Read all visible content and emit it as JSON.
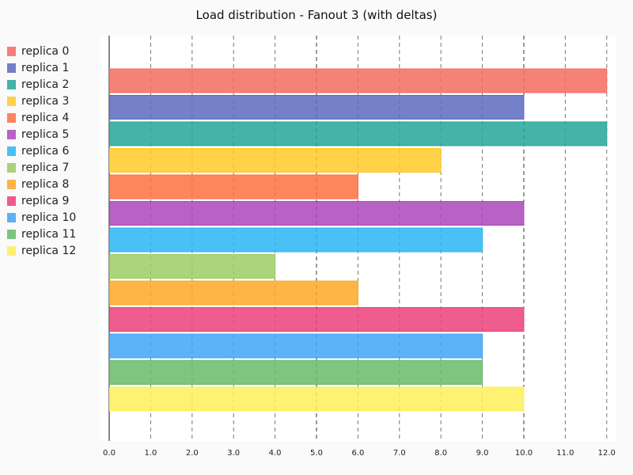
{
  "chart_data": {
    "type": "bar",
    "orientation": "horizontal",
    "title": "Load distribution - Fanout 3 (with deltas)",
    "xlabel": "",
    "ylabel": "",
    "xlim": [
      0,
      12.25
    ],
    "x_ticks": [
      "0.0",
      "1.0",
      "2.0",
      "3.0",
      "4.0",
      "5.0",
      "6.0",
      "7.0",
      "8.0",
      "9.0",
      "10.0",
      "11.0",
      "12.0"
    ],
    "grid": "vertical dashed",
    "legend_position": "left",
    "series": [
      {
        "name": "replica 0",
        "value": 12,
        "color": "#f46b5f"
      },
      {
        "name": "replica 1",
        "value": 10,
        "color": "#5c6bc0"
      },
      {
        "name": "replica 2",
        "value": 12,
        "color": "#26a69a"
      },
      {
        "name": "replica 3",
        "value": 8,
        "color": "#ffca28"
      },
      {
        "name": "replica 4",
        "value": 6,
        "color": "#ff7043"
      },
      {
        "name": "replica 5",
        "value": 10,
        "color": "#ab47bc"
      },
      {
        "name": "replica 6",
        "value": 9,
        "color": "#29b6f6"
      },
      {
        "name": "replica 7",
        "value": 4,
        "color": "#9ccc65"
      },
      {
        "name": "replica 8",
        "value": 6,
        "color": "#ffa726"
      },
      {
        "name": "replica 9",
        "value": 10,
        "color": "#ec407a"
      },
      {
        "name": "replica 10",
        "value": 9,
        "color": "#42a5f5"
      },
      {
        "name": "replica 11",
        "value": 9,
        "color": "#66bb6a"
      },
      {
        "name": "replica 12",
        "value": 10,
        "color": "#ffee58"
      }
    ]
  }
}
